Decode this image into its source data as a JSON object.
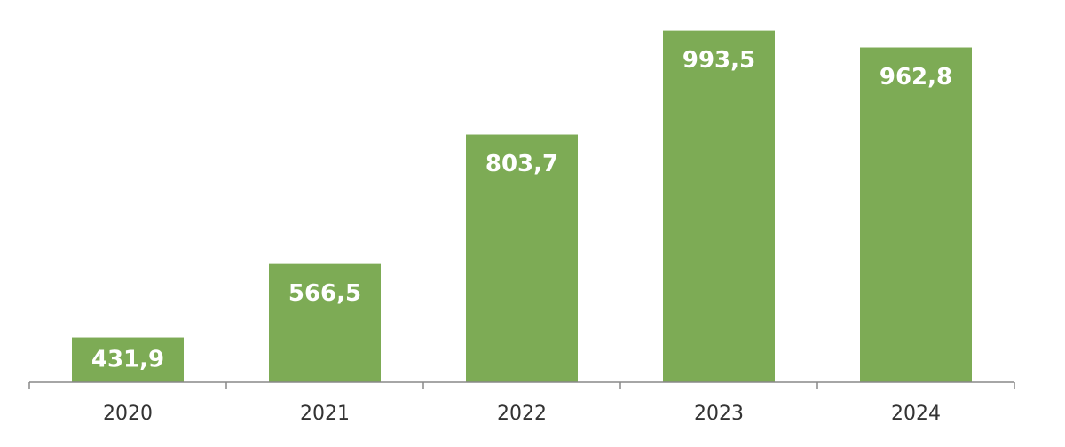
{
  "chart_data": {
    "type": "bar",
    "categories": [
      "2020",
      "2021",
      "2022",
      "2023",
      "2024"
    ],
    "values": [
      431.9,
      566.5,
      803.7,
      993.5,
      962.8
    ],
    "value_labels": [
      "431,9",
      "566,5",
      "803,7",
      "993,5",
      "962,8"
    ],
    "color": "#7dab55",
    "ylim": [
      350,
      1000
    ]
  }
}
